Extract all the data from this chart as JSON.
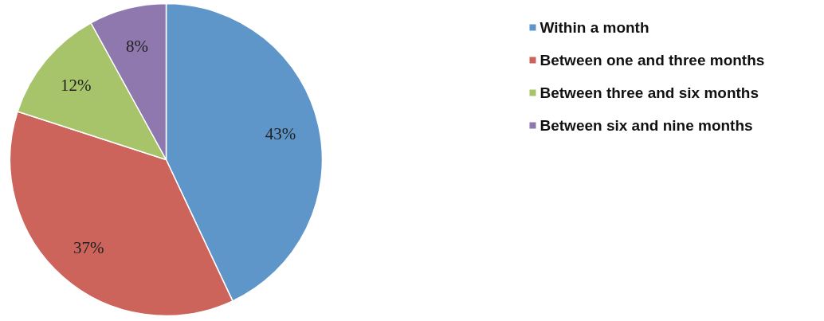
{
  "chart_data": {
    "type": "pie",
    "categories": [
      "Within a month",
      "Between one and three months",
      "Between three and six months",
      "Between six and nine months"
    ],
    "values": [
      43,
      37,
      12,
      8
    ],
    "value_labels": [
      "43%",
      "37%",
      "12%",
      "8%"
    ],
    "colors": [
      "#5f96c9",
      "#cc645c",
      "#a7c46a",
      "#8e78ad"
    ],
    "legend": "right"
  }
}
